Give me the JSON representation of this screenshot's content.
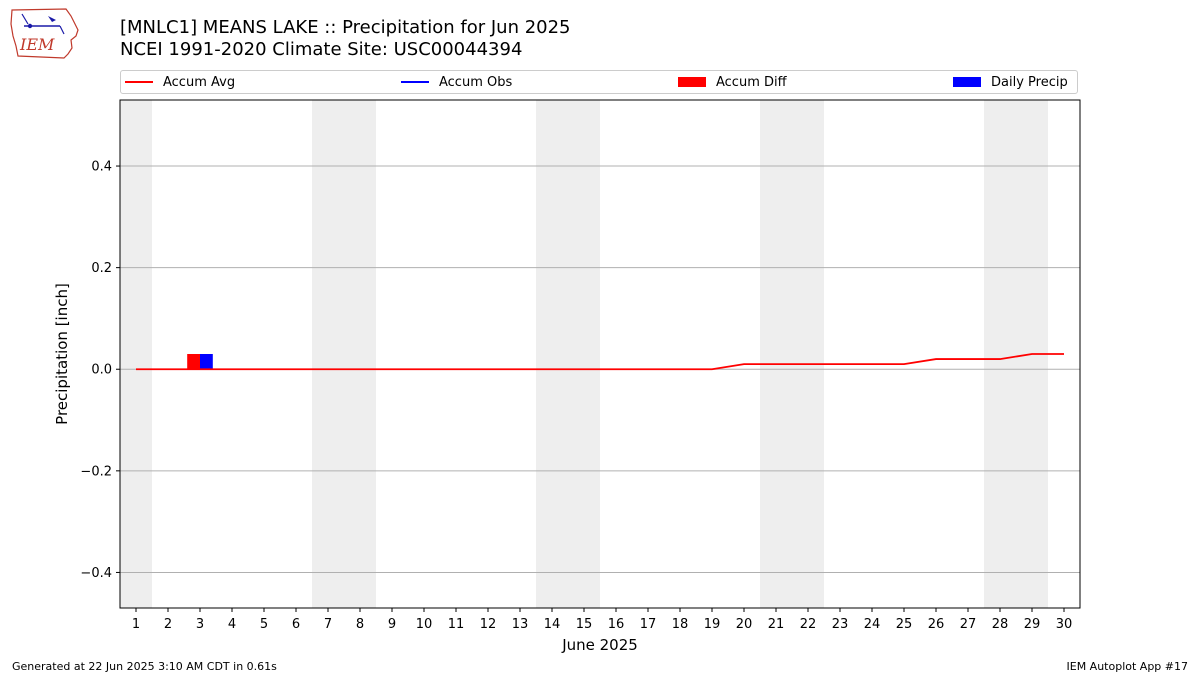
{
  "logo": {
    "text": "IEM"
  },
  "title": {
    "line1": "[MNLC1] MEANS LAKE :: Precipitation for Jun 2025",
    "line2": "NCEI 1991-2020 Climate Site: USC00044394"
  },
  "legend": {
    "items": [
      {
        "label": "Accum Avg",
        "kind": "line",
        "color": "#ff0000"
      },
      {
        "label": "Accum Obs",
        "kind": "line",
        "color": "#0000ff"
      },
      {
        "label": "Accum Diff",
        "kind": "box",
        "color": "#ff0000"
      },
      {
        "label": "Daily Precip",
        "kind": "box",
        "color": "#0000ff"
      }
    ]
  },
  "footer": {
    "left": "Generated at 22 Jun 2025 3:10 AM CDT in 0.61s",
    "right": "IEM Autoplot App #17"
  },
  "chart_data": {
    "type": "line",
    "xlabel": "June 2025",
    "ylabel": "Precipitation [inch]",
    "x": [
      1,
      2,
      3,
      4,
      5,
      6,
      7,
      8,
      9,
      10,
      11,
      12,
      13,
      14,
      15,
      16,
      17,
      18,
      19,
      20,
      21,
      22,
      23,
      24,
      25,
      26,
      27,
      28,
      29,
      30
    ],
    "xlim": [
      0.5,
      30.5
    ],
    "ylim": [
      -0.47,
      0.53
    ],
    "yticks": [
      -0.4,
      -0.2,
      0.0,
      0.2,
      0.4
    ],
    "ytick_labels": [
      "−0.4",
      "−0.2",
      "0.0",
      "0.2",
      "0.4"
    ],
    "grid": "horizontal",
    "weekend_shading": [
      1,
      7,
      8,
      14,
      15,
      21,
      22,
      28,
      29
    ],
    "series": [
      {
        "name": "Accum Avg",
        "kind": "line",
        "color": "#ff0000",
        "values": [
          0,
          0,
          0,
          0,
          0,
          0,
          0,
          0,
          0,
          0,
          0,
          0,
          0,
          0,
          0,
          0,
          0,
          0,
          0,
          0.01,
          0.01,
          0.01,
          0.01,
          0.01,
          0.01,
          0.02,
          0.02,
          0.02,
          0.03,
          0.03
        ]
      },
      {
        "name": "Accum Diff",
        "kind": "bar",
        "color": "#ff0000",
        "x": [
          3
        ],
        "values": [
          0.03
        ]
      },
      {
        "name": "Daily Precip",
        "kind": "bar",
        "color": "#0000ff",
        "x": [
          3
        ],
        "values": [
          0.03
        ]
      }
    ]
  }
}
